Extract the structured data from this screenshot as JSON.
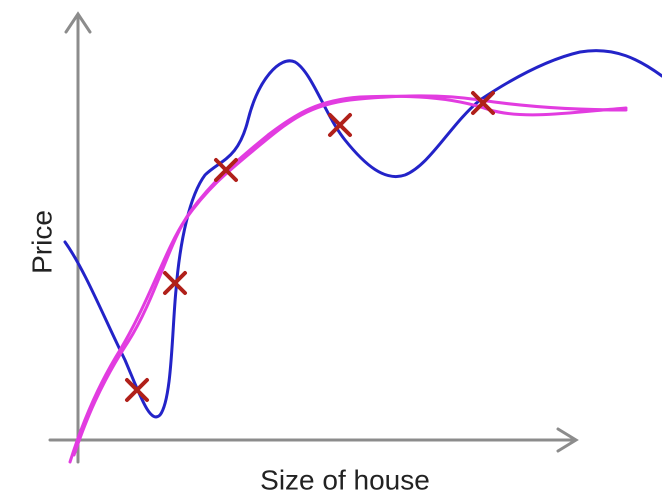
{
  "axes": {
    "y_label": "Price",
    "x_label": "Size of house"
  }
}
